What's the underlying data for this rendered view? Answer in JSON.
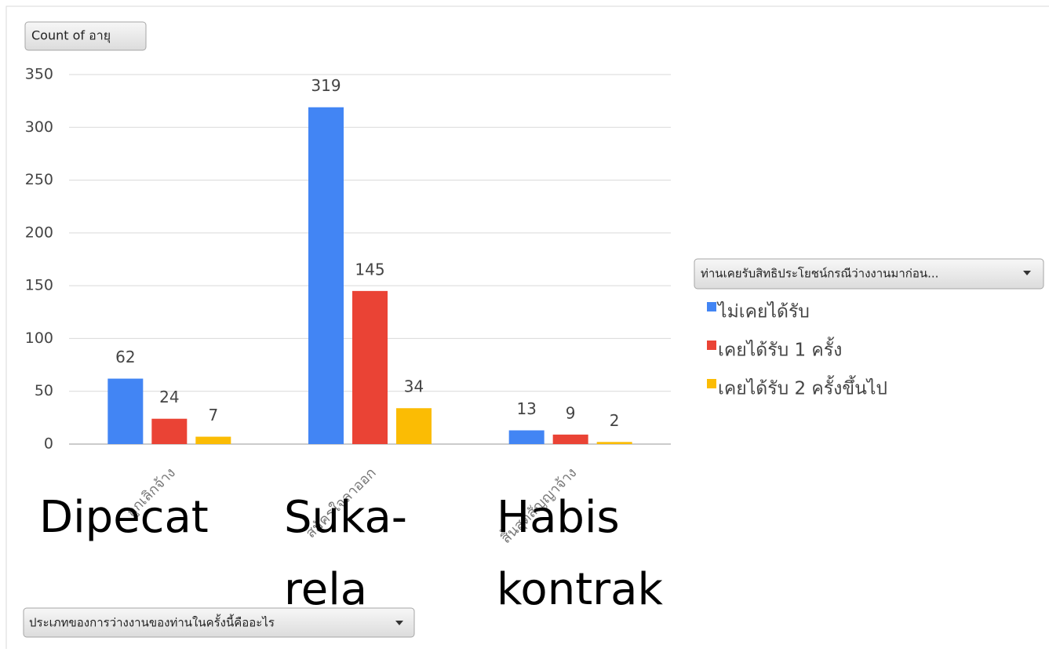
{
  "chart_data": {
    "type": "bar",
    "value_button": "Count of อายุ",
    "legend_title": "ท่านเคยรับสิทธิประโยชน์กรณีว่างงานมาก่อน...",
    "axis_button": "ประเภทของการว่างงานของท่านในครั้งนี้คืออะไร",
    "categories": [
      "ถูกเลิกจ้าง",
      "สมัครใจลาออก",
      "สิ้นสุดสัญญาจ้าง"
    ],
    "series": [
      {
        "name": "ไม่เคยได้รับ",
        "color": "#4285f4",
        "values": [
          62,
          319,
          13
        ]
      },
      {
        "name": "เคยได้รับ 1 ครั้ง",
        "color": "#ea4335",
        "values": [
          24,
          145,
          9
        ]
      },
      {
        "name": "เคยได้รับ 2 ครั้งขึ้นไป",
        "color": "#fbbc04",
        "values": [
          7,
          34,
          2
        ]
      }
    ],
    "annotations": [
      [
        "Dipecat"
      ],
      [
        "Suka-",
        "rela"
      ],
      [
        "Habis",
        "kontrak"
      ]
    ],
    "ylim": [
      0,
      350
    ],
    "yticks": [
      0,
      50,
      100,
      150,
      200,
      250,
      300,
      350
    ],
    "grid": true,
    "legend": "right"
  }
}
